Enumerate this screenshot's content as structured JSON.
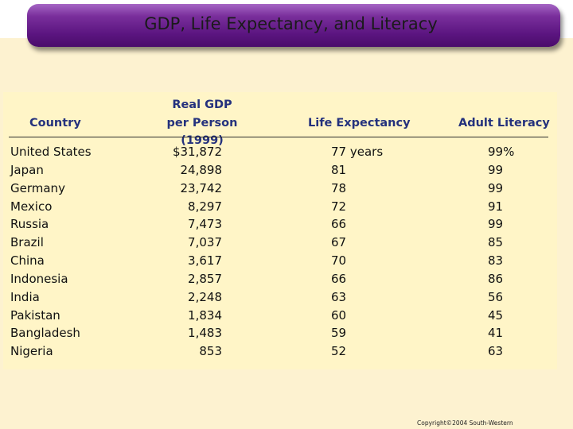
{
  "title": "GDP, Life Expectancy, and Literacy",
  "table": {
    "headers": {
      "country": "Country",
      "gdp_line1": "Real GDP",
      "gdp_line2": "per Person (1999)",
      "life": "Life Expectancy",
      "literacy": "Adult Literacy"
    },
    "rows": [
      {
        "country": "United States",
        "gdp": "$31,872",
        "life": "77 years",
        "literacy": "99%"
      },
      {
        "country": "Japan",
        "gdp": "24,898",
        "life": "81",
        "literacy": "99"
      },
      {
        "country": "Germany",
        "gdp": "23,742",
        "life": "78",
        "literacy": "99"
      },
      {
        "country": "Mexico",
        "gdp": "8,297",
        "life": "72",
        "literacy": "91"
      },
      {
        "country": "Russia",
        "gdp": "7,473",
        "life": "66",
        "literacy": "99"
      },
      {
        "country": "Brazil",
        "gdp": "7,037",
        "life": "67",
        "literacy": "85"
      },
      {
        "country": "China",
        "gdp": "3,617",
        "life": "70",
        "literacy": "83"
      },
      {
        "country": "Indonesia",
        "gdp": "2,857",
        "life": "66",
        "literacy": "86"
      },
      {
        "country": "India",
        "gdp": "2,248",
        "life": "63",
        "literacy": "56"
      },
      {
        "country": "Pakistan",
        "gdp": "1,834",
        "life": "60",
        "literacy": "45"
      },
      {
        "country": "Bangladesh",
        "gdp": "1,483",
        "life": "59",
        "literacy": "41"
      },
      {
        "country": "Nigeria",
        "gdp": "853",
        "life": "52",
        "literacy": "63"
      }
    ]
  },
  "copyright": "Copyright©2004  South-Western",
  "colors": {
    "header_text": "#24317d",
    "title_bar": "#5b1580",
    "background": "#fdf2d0",
    "table_fill": "#fff5c7"
  }
}
